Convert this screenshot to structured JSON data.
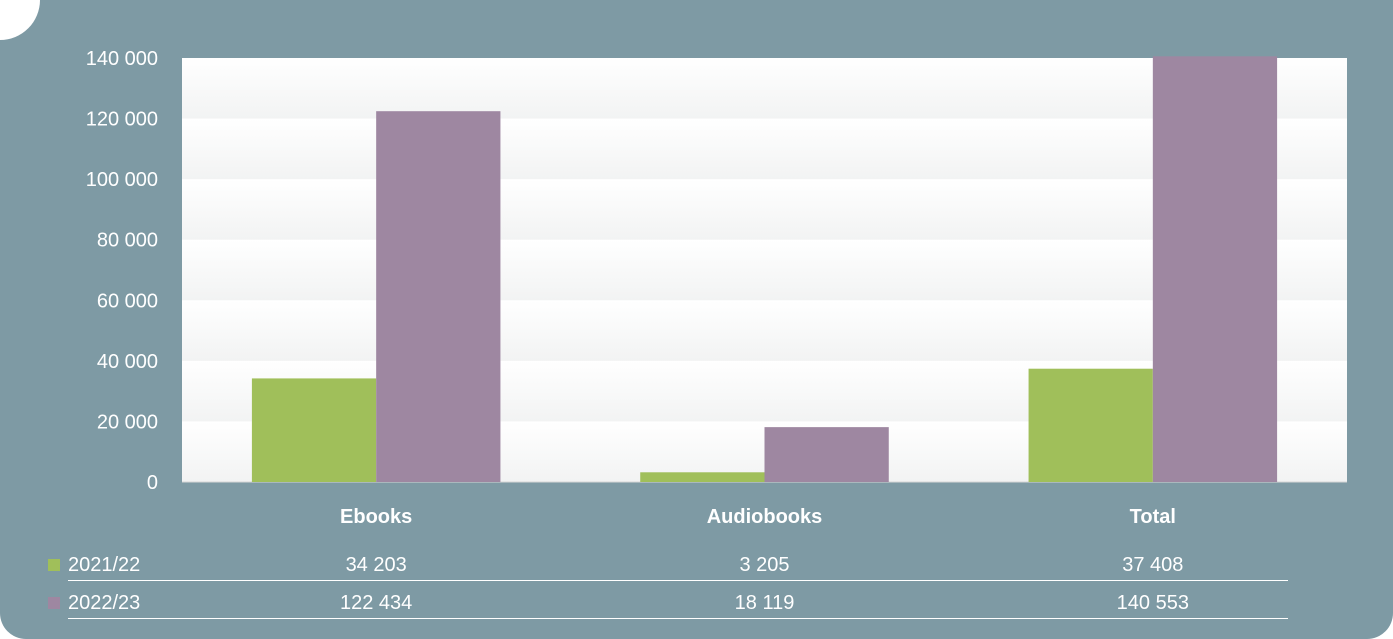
{
  "chart_data": {
    "type": "bar",
    "categories": [
      "Ebooks",
      "Audiobooks",
      "Total"
    ],
    "series": [
      {
        "name": "2021/22",
        "values": [
          34203,
          3205,
          37408
        ],
        "labels": [
          "34 203",
          "3 205",
          "37 408"
        ],
        "color": "#a0bf5a"
      },
      {
        "name": "2022/23",
        "values": [
          122434,
          18119,
          140553
        ],
        "labels": [
          "122 434",
          "18 119",
          "140 553"
        ],
        "color": "#9e87a1"
      }
    ],
    "ylim": [
      0,
      140000
    ],
    "yticks": [
      "0",
      "20 000",
      "40 000",
      "60 000",
      "80 000",
      "100 000",
      "120 000",
      "140 000"
    ],
    "ytick_values": [
      0,
      20000,
      40000,
      60000,
      80000,
      100000,
      120000,
      140000
    ],
    "legend": "table below chart",
    "plot_background": "#f2f3f3",
    "panel_background": "#7e9aa4"
  }
}
